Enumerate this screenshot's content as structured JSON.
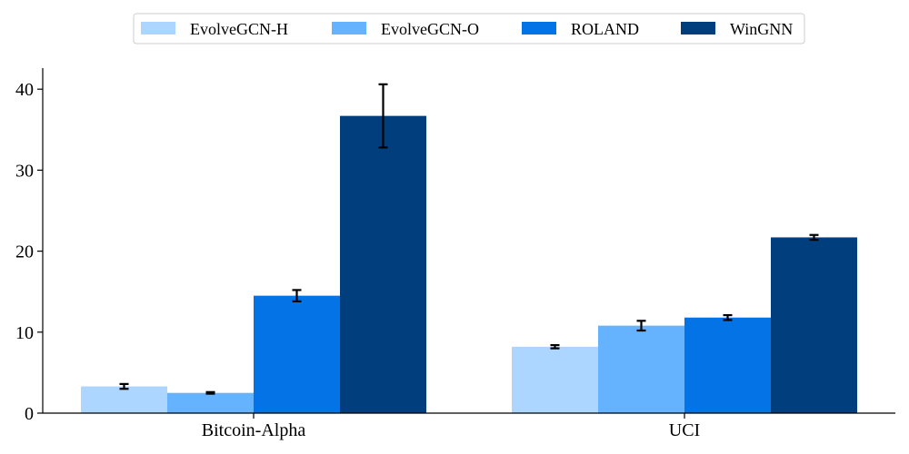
{
  "chart_data": {
    "type": "bar",
    "categories": [
      "Bitcoin-Alpha",
      "UCI"
    ],
    "series": [
      {
        "name": "EvolveGCN-H",
        "values": [
          3.3,
          8.2
        ],
        "errors": [
          0.3,
          0.2
        ],
        "color": "#acd5ff"
      },
      {
        "name": "EvolveGCN-O",
        "values": [
          2.5,
          10.8
        ],
        "errors": [
          0.1,
          0.6
        ],
        "color": "#65b2ff"
      },
      {
        "name": "ROLAND",
        "values": [
          14.5,
          11.8
        ],
        "errors": [
          0.7,
          0.3
        ],
        "color": "#0473e6"
      },
      {
        "name": "WinGNN",
        "values": [
          36.7,
          21.7
        ],
        "errors": [
          3.9,
          0.3
        ],
        "color": "#003e7d"
      }
    ],
    "yticks": [
      0,
      10,
      20,
      30,
      40
    ],
    "ylim": [
      0,
      42.6
    ],
    "xlabel": "",
    "ylabel": "",
    "title": "",
    "grid": false,
    "legend_position": "top-center"
  }
}
